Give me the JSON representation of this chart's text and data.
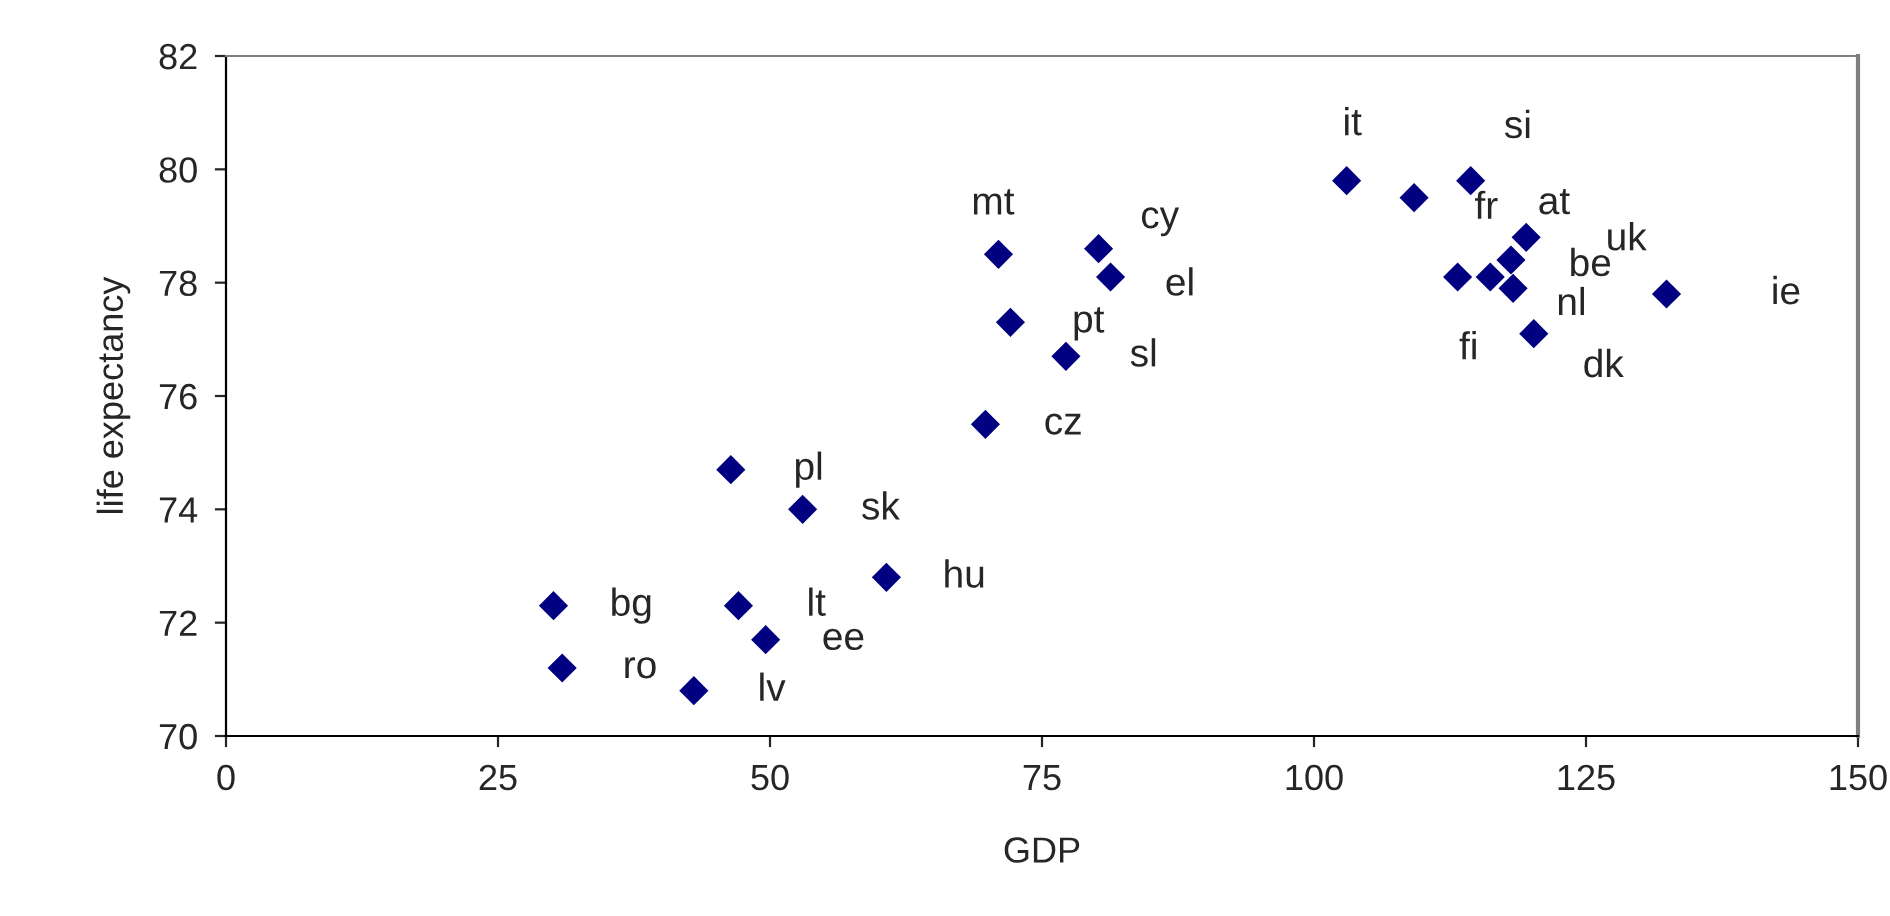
{
  "chart_data": {
    "type": "scatter",
    "xlabel": "GDP",
    "ylabel": "life expectancy",
    "x": [
      103.0,
      109.2,
      114.4,
      119.5,
      118.1,
      116.2,
      113.2,
      118.3,
      120.2,
      132.4,
      71.0,
      80.2,
      81.3,
      72.1,
      77.2,
      69.8,
      46.4,
      53.0,
      60.7,
      30.1,
      47.1,
      49.6,
      30.9,
      43.0
    ],
    "values": [
      79.8,
      79.5,
      79.8,
      78.8,
      78.4,
      78.1,
      78.1,
      77.9,
      77.1,
      77.8,
      78.5,
      78.6,
      78.1,
      77.3,
      76.7,
      75.5,
      74.7,
      74.0,
      72.8,
      72.3,
      72.3,
      71.7,
      71.2,
      70.8
    ],
    "color": "#000080",
    "marker": "diamond",
    "xlim": [
      0,
      150
    ],
    "xticks": [
      0,
      25,
      50,
      75,
      100,
      125,
      150
    ],
    "ylim": [
      70,
      82
    ],
    "yticks": [
      70,
      72,
      74,
      76,
      78,
      80,
      82
    ],
    "grid": false,
    "legend": false,
    "annotations": [
      {
        "text": "it",
        "x": 103.0,
        "y": 79.8
      },
      {
        "text": "si",
        "x": 114.4,
        "y": 79.8
      },
      {
        "text": "fr",
        "x": 109.2,
        "y": 79.5
      },
      {
        "text": "at",
        "x": 119.5,
        "y": 78.8
      },
      {
        "text": "uk",
        "x": 119.5,
        "y": 78.8
      },
      {
        "text": "be",
        "x": 116.2,
        "y": 78.1
      },
      {
        "text": "fi",
        "x": 113.2,
        "y": 78.1
      },
      {
        "text": "nl",
        "x": 118.3,
        "y": 77.9
      },
      {
        "text": "dk",
        "x": 120.2,
        "y": 77.1
      },
      {
        "text": "ie",
        "x": 132.4,
        "y": 77.8
      },
      {
        "text": "mt",
        "x": 71.0,
        "y": 78.5
      },
      {
        "text": "cy",
        "x": 80.2,
        "y": 78.6
      },
      {
        "text": "el",
        "x": 81.3,
        "y": 78.1
      },
      {
        "text": "pt",
        "x": 72.1,
        "y": 77.3
      },
      {
        "text": "sl",
        "x": 77.2,
        "y": 76.7
      },
      {
        "text": "cz",
        "x": 69.8,
        "y": 75.5
      },
      {
        "text": "pl",
        "x": 46.4,
        "y": 74.7
      },
      {
        "text": "sk",
        "x": 53.0,
        "y": 74.0
      },
      {
        "text": "hu",
        "x": 60.7,
        "y": 72.8
      },
      {
        "text": "bg",
        "x": 30.1,
        "y": 72.3
      },
      {
        "text": "lt",
        "x": 47.1,
        "y": 72.3
      },
      {
        "text": "ee",
        "x": 49.6,
        "y": 71.7
      },
      {
        "text": "ro",
        "x": 30.9,
        "y": 71.2
      },
      {
        "text": "lv",
        "x": 43.0,
        "y": 70.8
      }
    ]
  }
}
